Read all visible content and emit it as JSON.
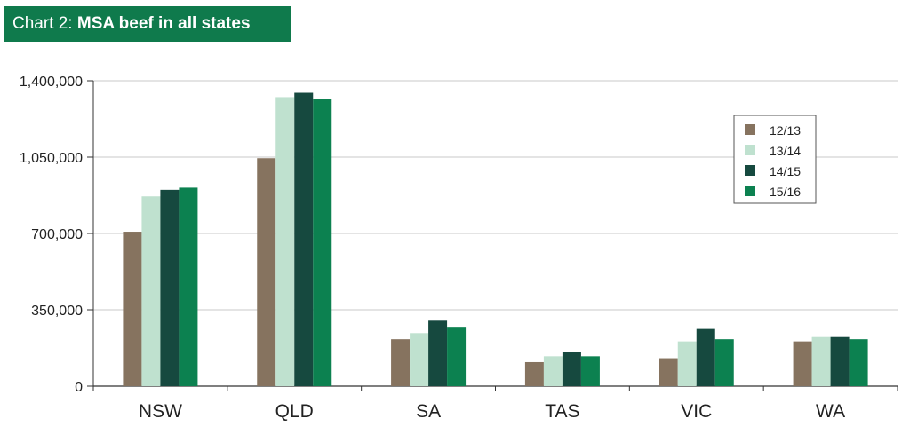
{
  "title": {
    "prefix": "Chart 2: ",
    "main": "MSA beef in all states"
  },
  "colors": {
    "title_bg": "#0f7a4c",
    "title_text": "#ffffff",
    "gridline": "#c8c8c8",
    "axis": "#333333"
  },
  "chart_data": {
    "type": "bar",
    "title": "Chart 2: MSA beef in all states",
    "categories": [
      "NSW",
      "QLD",
      "SA",
      "TAS",
      "VIC",
      "WA"
    ],
    "series": [
      {
        "name": "12/13",
        "color": "#86735f",
        "values": [
          708000,
          1045000,
          215000,
          110000,
          128000,
          205000
        ]
      },
      {
        "name": "13/14",
        "color": "#bfe1cf",
        "values": [
          870000,
          1325000,
          243000,
          137000,
          205000,
          225000
        ]
      },
      {
        "name": "14/15",
        "color": "#16493f",
        "values": [
          900000,
          1345000,
          300000,
          158000,
          262000,
          225000
        ]
      },
      {
        "name": "15/16",
        "color": "#0c8150",
        "values": [
          910000,
          1315000,
          272000,
          137000,
          215000,
          215000
        ]
      }
    ],
    "ylim": [
      0,
      1400000
    ],
    "yticks": [
      0,
      350000,
      700000,
      1050000,
      1400000
    ],
    "ytick_labels": [
      "0",
      "350,000",
      "700,000",
      "1,050,000",
      "1,400,000"
    ],
    "xlabel": "",
    "ylabel": "",
    "grid": true,
    "legend_position": "top-right"
  }
}
